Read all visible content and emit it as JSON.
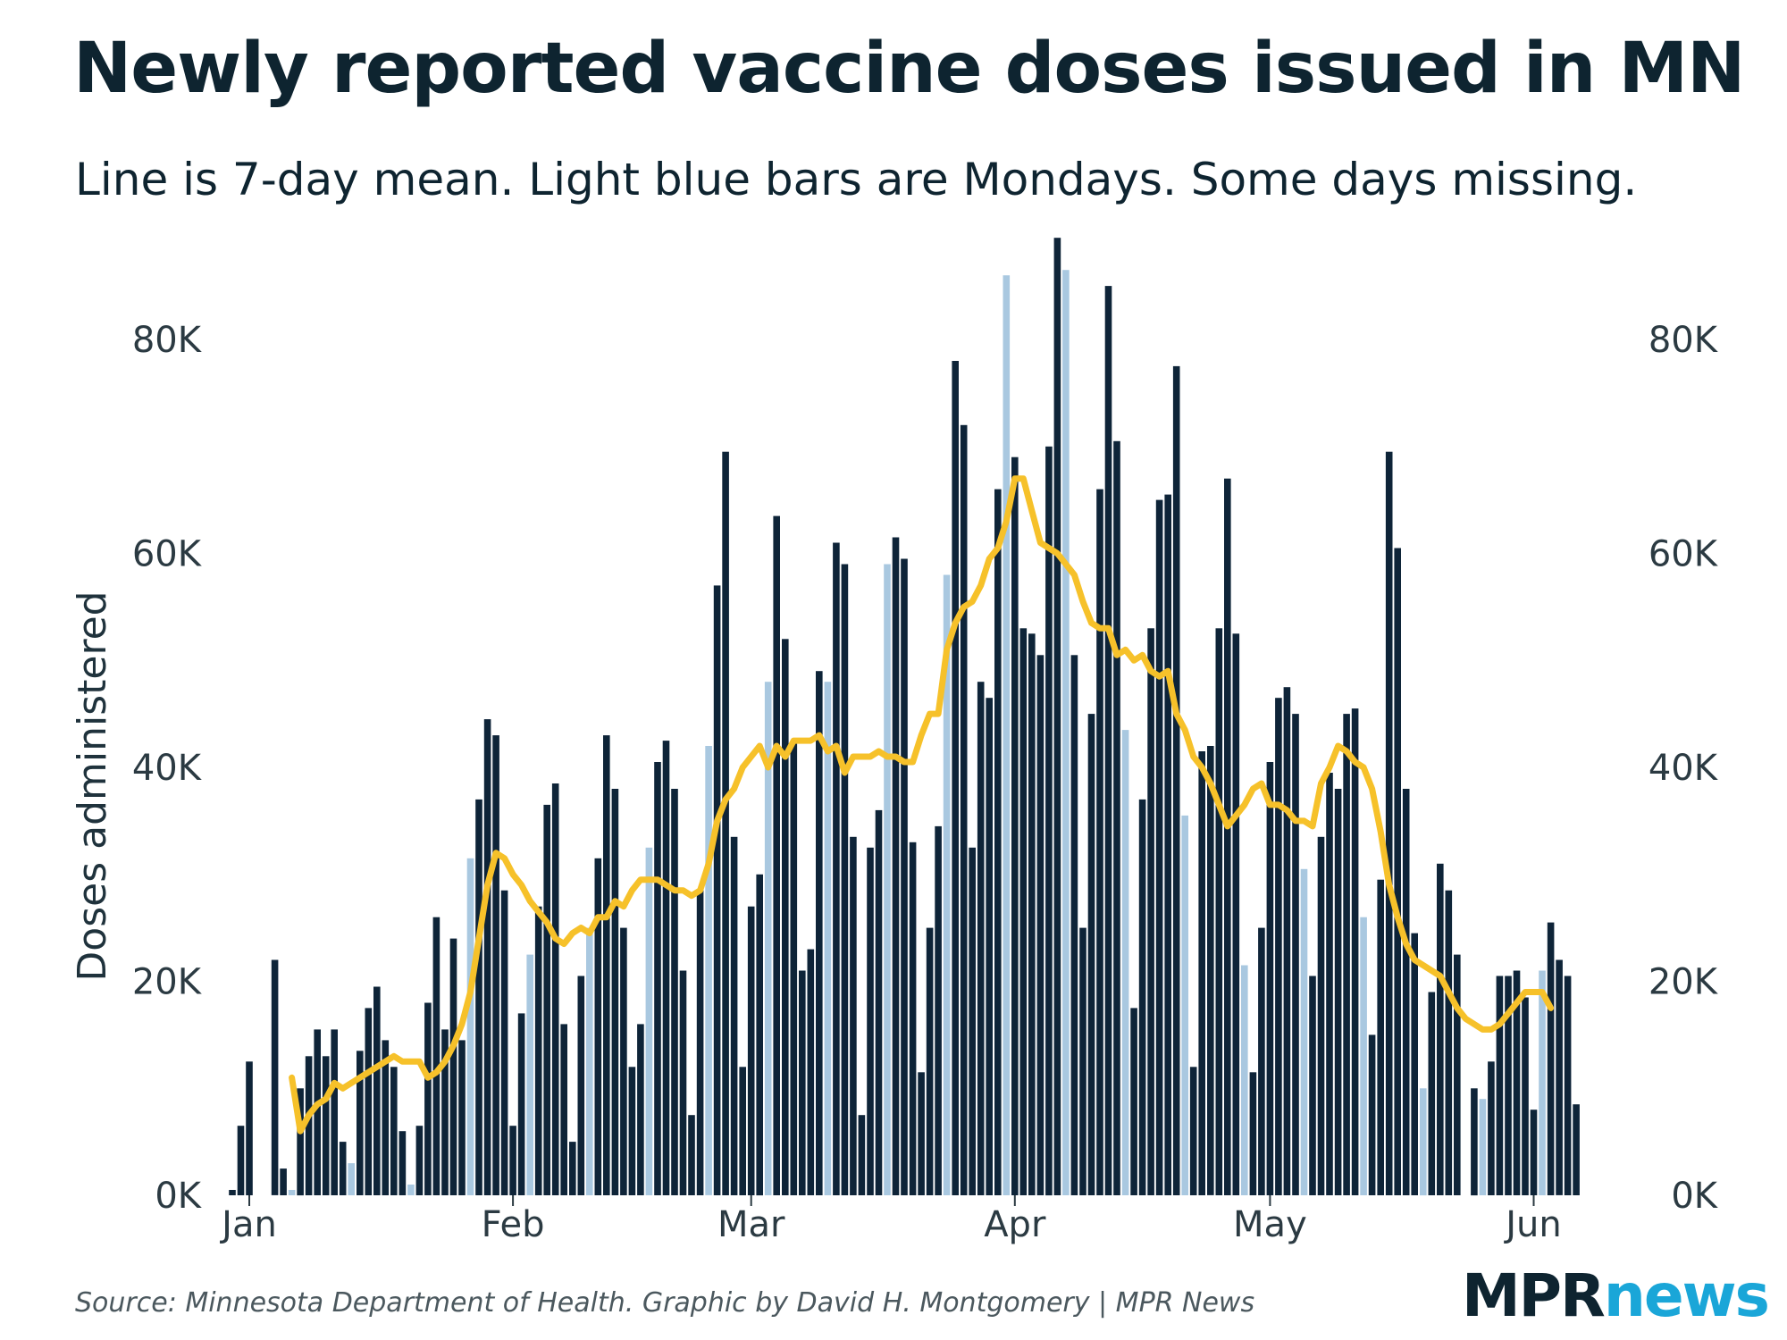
{
  "chart_data": {
    "type": "bar",
    "title": "Newly reported vaccine doses issued in MN",
    "subtitle": "Line is 7-day mean. Light blue bars are Mondays. Some days missing.",
    "ylabel": "Doses administered",
    "xlabel": "",
    "ylim": [
      0,
      90000
    ],
    "y_ticks": [
      {
        "value": 0,
        "label": "0K"
      },
      {
        "value": 20000,
        "label": "20K"
      },
      {
        "value": 40000,
        "label": "40K"
      },
      {
        "value": 60000,
        "label": "60K"
      },
      {
        "value": 80000,
        "label": "80K"
      }
    ],
    "x_ticks": [
      {
        "day": 1,
        "label": "Jan"
      },
      {
        "day": 32,
        "label": "Feb"
      },
      {
        "day": 60,
        "label": "Mar"
      },
      {
        "day": 91,
        "label": "Apr"
      },
      {
        "day": 121,
        "label": "May"
      },
      {
        "day": 152,
        "label": "Jun"
      }
    ],
    "day_start": "Jan 1",
    "first_day_index": -1,
    "bar_colors": {
      "weekday": "#0e2438",
      "monday": "#a9c8e0"
    },
    "line_color": "#f6c12a",
    "series": [
      {
        "name": "Daily doses",
        "type": "bar",
        "values": [
          500,
          6500,
          12500,
          null,
          null,
          22000,
          2500,
          500,
          10000,
          13000,
          15500,
          13000,
          15500,
          5000,
          3000,
          13500,
          17500,
          19500,
          14500,
          12000,
          6000,
          1000,
          6500,
          18000,
          26000,
          15500,
          24000,
          14500,
          31500,
          37000,
          44500,
          43000,
          28500,
          6500,
          17000,
          22500,
          27000,
          36500,
          38500,
          16000,
          5000,
          20500,
          25000,
          31500,
          43000,
          38000,
          25000,
          12000,
          16000,
          32500,
          40500,
          42500,
          38000,
          21000,
          7500,
          28500,
          42000,
          57000,
          69500,
          33500,
          12000,
          27000,
          30000,
          48000,
          63500,
          52000,
          42500,
          21000,
          23000,
          49000,
          48000,
          61000,
          59000,
          33500,
          7500,
          32500,
          36000,
          59000,
          61500,
          59500,
          33000,
          11500,
          25000,
          34500,
          58000,
          78000,
          72000,
          32500,
          48000,
          46500,
          66000,
          86000,
          69000,
          53000,
          52500,
          50500,
          70000,
          89500,
          86500,
          50500,
          25000,
          45000,
          66000,
          85000,
          70500,
          43500,
          17500,
          37000,
          53000,
          65000,
          65500,
          77500,
          35500,
          12000,
          41500,
          42000,
          53000,
          67000,
          52500,
          21500,
          11500,
          25000,
          40500,
          46500,
          47500,
          45000,
          30500,
          20500,
          33500,
          39500,
          38000,
          45000,
          45500,
          26000,
          15000,
          29500,
          69500,
          60500,
          38000,
          24500,
          10000,
          19000,
          31000,
          28500,
          22500,
          null,
          10000,
          9000,
          12500,
          20500,
          20500,
          21000,
          18500,
          8000,
          21000,
          25500,
          22000,
          20500,
          8500
        ],
        "mondays": [
          6,
          13,
          20,
          27,
          34,
          41,
          48,
          55,
          62,
          69,
          76,
          83,
          90,
          97,
          104,
          111,
          118,
          125,
          132,
          139,
          146,
          153,
          160
        ]
      },
      {
        "name": "7-day mean",
        "type": "line",
        "values": [
          null,
          null,
          null,
          null,
          null,
          null,
          null,
          11000,
          6000,
          7500,
          8500,
          9000,
          10500,
          10000,
          10500,
          11000,
          11500,
          12000,
          12500,
          13000,
          12500,
          12500,
          12500,
          11000,
          11500,
          12500,
          14000,
          16000,
          19000,
          24000,
          29000,
          32000,
          31500,
          30000,
          29000,
          27500,
          26500,
          25500,
          24000,
          23500,
          24500,
          25000,
          24500,
          26000,
          26000,
          27500,
          27000,
          28500,
          29500,
          29500,
          29500,
          29000,
          28500,
          28500,
          28000,
          28500,
          31000,
          35000,
          37000,
          38000,
          40000,
          41000,
          42000,
          40000,
          42000,
          41000,
          42500,
          42500,
          42500,
          43000,
          41500,
          42000,
          39500,
          41000,
          41000,
          41000,
          41500,
          41000,
          41000,
          40500,
          40500,
          43000,
          45000,
          45000,
          51000,
          53500,
          55000,
          55500,
          57000,
          59500,
          60500,
          63000,
          67000,
          67000,
          64000,
          61000,
          60500,
          60000,
          59000,
          58000,
          55500,
          53500,
          53000,
          53000,
          50500,
          51000,
          50000,
          50500,
          49000,
          48500,
          49000,
          45000,
          43500,
          41000,
          40000,
          38500,
          36500,
          34500,
          35500,
          36500,
          38000,
          38500,
          36500,
          36500,
          36000,
          35000,
          35000,
          34500,
          38500,
          40000,
          42000,
          41500,
          40500,
          40000,
          38000,
          34000,
          29000,
          26000,
          23500,
          22000,
          21500,
          21000,
          20500,
          19000,
          17500,
          16500,
          16000,
          15500,
          15500,
          16000,
          17000,
          18000,
          19000,
          19000,
          19000,
          17500
        ]
      }
    ]
  },
  "source": "Source: Minnesota Department of Health. Graphic by David H. Montgomery | MPR News",
  "logo": {
    "part1": "MPR",
    "part2": "news"
  }
}
